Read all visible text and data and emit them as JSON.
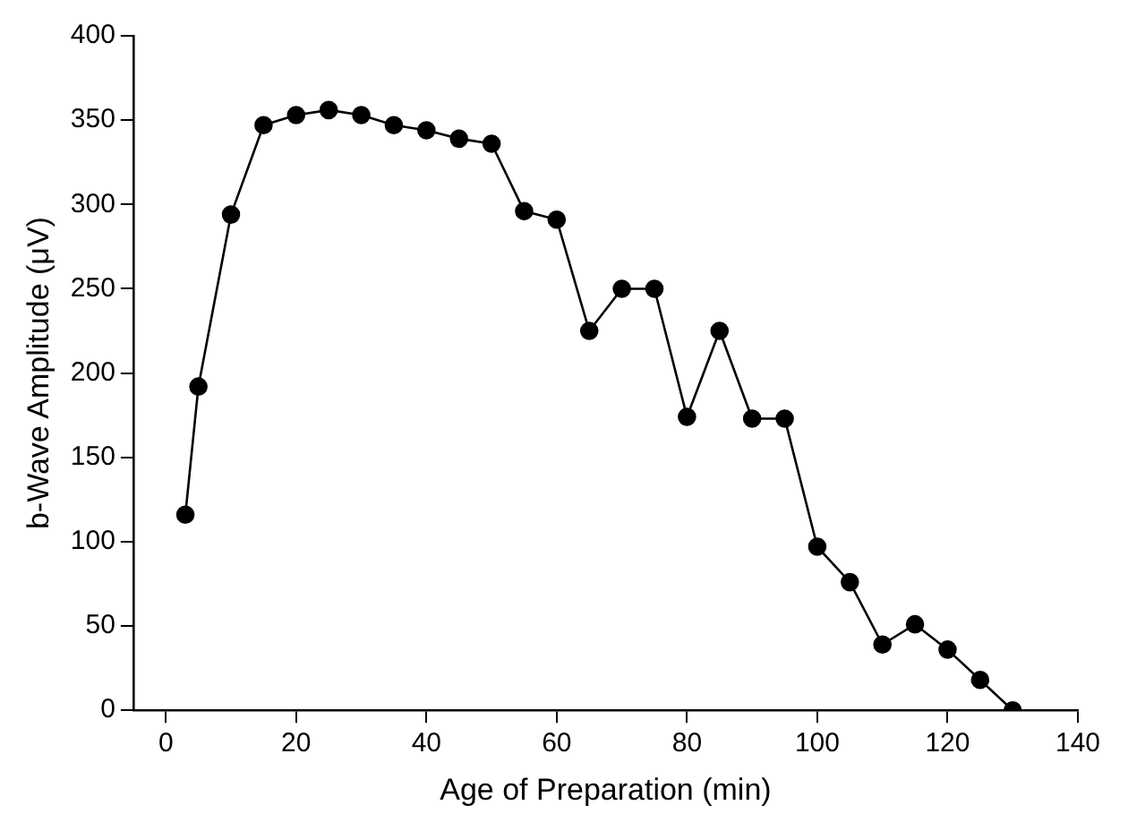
{
  "chart_data": {
    "type": "line",
    "xlabel": "Age of Preparation (min)",
    "ylabel": "b-Wave Amplitude (μV)",
    "x": [
      3,
      5,
      10,
      15,
      20,
      25,
      30,
      35,
      40,
      45,
      50,
      55,
      60,
      65,
      70,
      75,
      80,
      85,
      90,
      95,
      100,
      105,
      110,
      115,
      120,
      125,
      130
    ],
    "series": [
      {
        "color": "#000000",
        "values": [
          116,
          192,
          294,
          347,
          353,
          356,
          353,
          347,
          344,
          339,
          336,
          296,
          291,
          225,
          250,
          250,
          174,
          225,
          173,
          173,
          97,
          76,
          39,
          51,
          36,
          18,
          0
        ]
      }
    ],
    "xlim": [
      -5,
      140
    ],
    "xticks": [
      0,
      20,
      40,
      60,
      80,
      100,
      120,
      140
    ],
    "ylim": [
      0,
      400
    ],
    "yticks": [
      0,
      50,
      100,
      150,
      200,
      250,
      300,
      350,
      400
    ],
    "grid": false,
    "legend": false,
    "marker": "circle",
    "line_style": "solid"
  }
}
